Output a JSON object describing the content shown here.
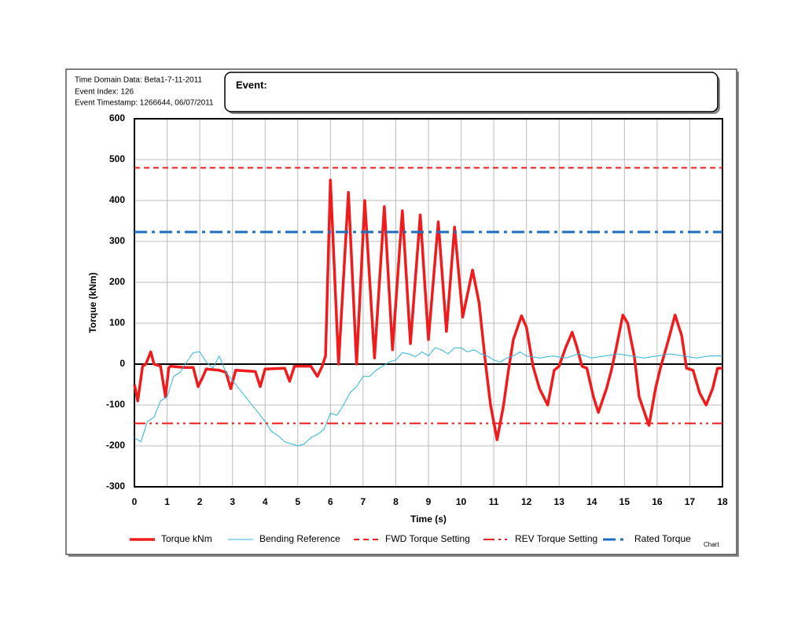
{
  "header": {
    "lines": [
      "Time Domain Data: Beta1-7-11-2011",
      "Event Index: 126",
      "Event Timestamp: 1266644, 06/07/2011"
    ],
    "event_label": "Event:",
    "corner_note": "Chart"
  },
  "chart_data": {
    "type": "line",
    "xlabel": "Time (s)",
    "ylabel": "Torque (kNm)",
    "xlim": [
      0,
      18
    ],
    "xticks": [
      0,
      1,
      2,
      3,
      4,
      5,
      6,
      7,
      8,
      9,
      10,
      11,
      12,
      13,
      14,
      15,
      16,
      17,
      18
    ],
    "ylim": [
      -300,
      600
    ],
    "yticks": [
      -300,
      -200,
      -100,
      0,
      100,
      200,
      300,
      400,
      500,
      600
    ],
    "grid": true,
    "legend": "bottom",
    "series": [
      {
        "name": "Torque kNm",
        "color": "#ee1c1c",
        "dash": "solid",
        "width": 3.5,
        "x": [
          0,
          0.1,
          0.25,
          0.35,
          0.5,
          0.6,
          0.8,
          0.95,
          1.05,
          1.1,
          1.5,
          1.8,
          1.95,
          2.1,
          2.2,
          2.6,
          2.8,
          2.95,
          3.1,
          3.7,
          3.85,
          4.0,
          4.6,
          4.75,
          4.9,
          5.4,
          5.6,
          5.75,
          5.85,
          6.0,
          6.25,
          6.55,
          6.8,
          7.05,
          7.35,
          7.65,
          7.9,
          8.2,
          8.45,
          8.75,
          9.0,
          9.3,
          9.55,
          9.8,
          10.05,
          10.35,
          10.55,
          10.75,
          10.9,
          11.1,
          11.3,
          11.45,
          11.6,
          11.85,
          12.0,
          12.2,
          12.4,
          12.65,
          12.85,
          13.0,
          13.2,
          13.4,
          13.55,
          13.7,
          13.85,
          14.05,
          14.2,
          14.45,
          14.6,
          14.75,
          14.95,
          15.1,
          15.3,
          15.45,
          15.75,
          15.95,
          16.1,
          16.35,
          16.55,
          16.75,
          16.9,
          17.1,
          17.3,
          17.5,
          17.7,
          17.85,
          18
        ],
        "values": [
          -50,
          -90,
          -5,
          0,
          30,
          0,
          -5,
          -80,
          -10,
          -5,
          -8,
          -8,
          -55,
          -30,
          -12,
          -15,
          -20,
          -60,
          -15,
          -18,
          -55,
          -12,
          -10,
          -42,
          -5,
          -5,
          -30,
          -5,
          20,
          450,
          0,
          420,
          0,
          400,
          15,
          385,
          35,
          375,
          50,
          365,
          60,
          348,
          80,
          335,
          115,
          230,
          150,
          0,
          -100,
          -185,
          -100,
          -15,
          60,
          118,
          90,
          -5,
          -60,
          -100,
          -15,
          -5,
          40,
          78,
          40,
          -5,
          -10,
          -80,
          -118,
          -60,
          -15,
          40,
          120,
          100,
          20,
          -80,
          -150,
          -60,
          -10,
          60,
          120,
          70,
          -10,
          -15,
          -70,
          -100,
          -60,
          -10,
          -10
        ]
      },
      {
        "name": "Bending Reference",
        "color": "#2eb4e0",
        "dash": "solid",
        "width": 1,
        "x": [
          0,
          0.2,
          0.4,
          0.6,
          0.8,
          1.0,
          1.2,
          1.4,
          1.6,
          1.8,
          2.0,
          2.2,
          2.4,
          2.6,
          2.8,
          3.0,
          3.2,
          3.4,
          3.6,
          3.8,
          4.0,
          4.2,
          4.4,
          4.6,
          4.8,
          5.0,
          5.2,
          5.4,
          5.6,
          5.8,
          6.0,
          6.2,
          6.4,
          6.6,
          6.8,
          7.0,
          7.2,
          7.4,
          7.6,
          7.8,
          8.0,
          8.2,
          8.4,
          8.6,
          8.8,
          9.0,
          9.2,
          9.4,
          9.6,
          9.8,
          10.0,
          10.2,
          10.4,
          10.6,
          10.8,
          11.0,
          11.2,
          11.4,
          11.6,
          11.8,
          12.0,
          12.4,
          12.8,
          13.2,
          13.6,
          14.0,
          14.4,
          14.8,
          15.2,
          15.6,
          16.0,
          16.4,
          16.8,
          17.2,
          17.6,
          18
        ],
        "values": [
          -180,
          -190,
          -140,
          -130,
          -90,
          -80,
          -30,
          -20,
          5,
          28,
          30,
          5,
          -10,
          20,
          -20,
          -40,
          -60,
          -80,
          -100,
          -120,
          -140,
          -165,
          -175,
          -190,
          -195,
          -200,
          -195,
          -180,
          -172,
          -160,
          -120,
          -125,
          -100,
          -70,
          -55,
          -30,
          -30,
          -15,
          -5,
          5,
          10,
          28,
          25,
          18,
          30,
          20,
          40,
          35,
          25,
          40,
          40,
          30,
          35,
          25,
          20,
          10,
          5,
          15,
          20,
          30,
          20,
          15,
          20,
          15,
          25,
          15,
          20,
          25,
          20,
          15,
          20,
          25,
          20,
          15,
          20,
          20
        ]
      },
      {
        "name": "FWD Torque Setting",
        "color": "#ee1c1c",
        "dash": "dash",
        "width": 2,
        "x": [
          0,
          18
        ],
        "values": [
          480,
          480
        ]
      },
      {
        "name": "REV Torque Setting",
        "color": "#ee1c1c",
        "dash": "dashdotdot",
        "width": 2,
        "x": [
          0,
          18
        ],
        "values": [
          -145,
          -145
        ]
      },
      {
        "name": "Rated Torque",
        "color": "#1a6fc4",
        "dash": "dashdot",
        "width": 3,
        "x": [
          0,
          18
        ],
        "values": [
          323,
          323
        ]
      }
    ]
  }
}
